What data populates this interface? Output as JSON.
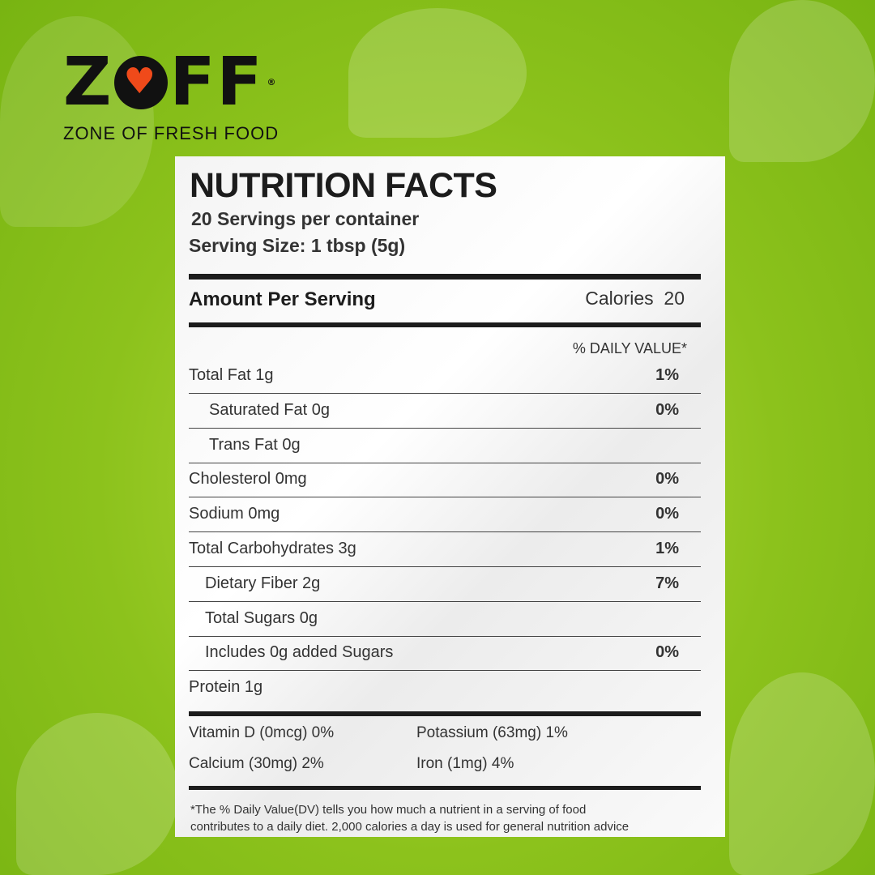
{
  "brand": {
    "name_pre": "Z",
    "name_post": "FF",
    "registered": "®",
    "tagline": "ZONE OF FRESH FOOD",
    "heart_color": "#f04a1a"
  },
  "label": {
    "title": "NUTRITION FACTS",
    "servings": "20 Servings per container",
    "serving_size": "Serving Size: 1 tbsp (5g)",
    "amount_per_serving": "Amount Per Serving",
    "calories": "Calories  20",
    "daily_value_header": "% DAILY VALUE*",
    "rows": [
      {
        "label": "Total Fat  1g",
        "dv": "1%",
        "indent": 0
      },
      {
        "label": "Saturated Fat  0g",
        "dv": "0%",
        "indent": 1
      },
      {
        "label": "Trans Fat 0g",
        "dv": "",
        "indent": 1
      },
      {
        "label": "Cholesterol  0mg",
        "dv": "0%",
        "indent": 0
      },
      {
        "label": "Sodium  0mg",
        "dv": "0%",
        "indent": 0
      },
      {
        "label": "Total Carbohydrates  3g",
        "dv": "1%",
        "indent": 0
      },
      {
        "label": "Dietary Fiber  2g",
        "dv": "7%",
        "indent": 2
      },
      {
        "label": "Total Sugars  0g",
        "dv": "",
        "indent": 2
      },
      {
        "label": "Includes 0g added Sugars",
        "dv": "0%",
        "indent": 2
      },
      {
        "label": "Protein  1g",
        "dv": "",
        "indent": 0
      }
    ],
    "vitamins": [
      "Vitamin D (0mcg) 0%",
      "Potassium (63mg) 1%",
      "Calcium (30mg) 2%",
      "Iron (1mg) 4%"
    ],
    "footnote_1": "*The % Daily Value(DV) tells you how much a nutrient in a serving of food",
    "footnote_2": "contributes to a daily diet. 2,000 calories a day is used for general nutrition advice"
  }
}
